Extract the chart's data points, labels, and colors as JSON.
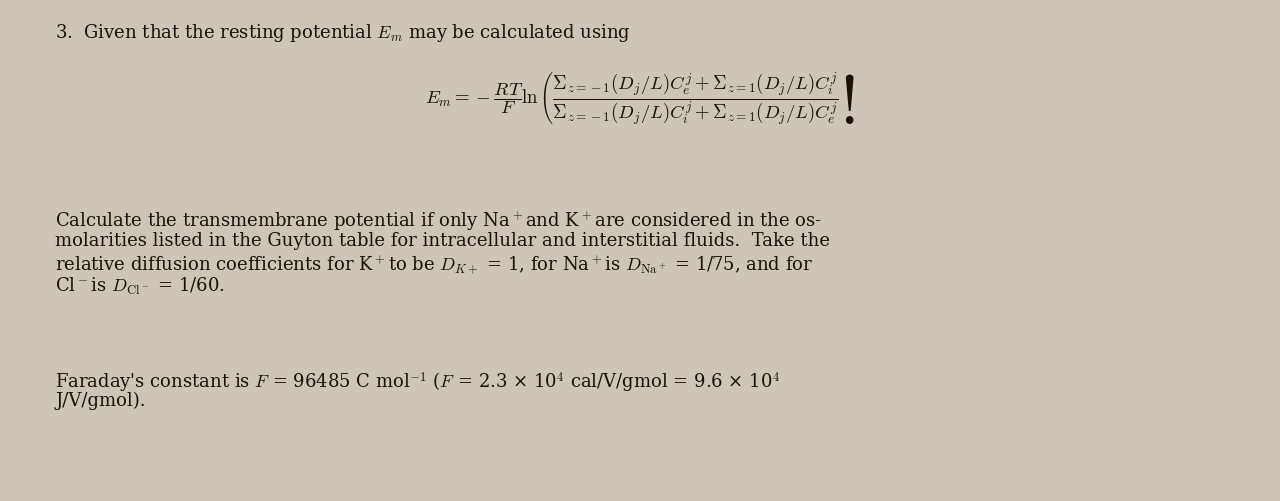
{
  "background_color": "#ccc5b8",
  "text_color": "#1a1208",
  "fig_width": 12.8,
  "fig_height": 5.02,
  "line1": "3.  Given that the resting potential $E_m$ may be calculated using",
  "equation": "$E_m = -\\dfrac{RT}{F}\\ln\\left(\\dfrac{\\Sigma_{z=-1}(D_j/L)C_e^j + \\Sigma_{z=1}(D_j/L)C_i^j}{\\Sigma_{z=-1}(D_j/L)C_i^j + \\Sigma_{z=1}(D_j/L)C_e^j}\\right)$",
  "para1_line1": "Calculate the transmembrane potential if only Na$^+$and K$^+$are considered in the os-",
  "para1_line2": "molarities listed in the Guyton table for intracellular and interstitial fluids.  Take the",
  "para1_line3": "relative diffusion coefficients for K$^+$to be $D_{K+}$ = 1, for Na$^+$is $D_{\\mathrm{Na}^+}$ = 1/75, and for",
  "para1_line4": "Cl$^-$is $D_{\\mathrm{Cl}^-}$ = 1/60.",
  "para2_line1": "Faraday's constant is $F$ = 96485 C mol$^{-1}$ ($F$ = 2.3 × 10$^4$ cal/V/gmol = 9.6 × 10$^4$",
  "para2_line2": "J/V/gmol).",
  "font_size_main": 13.0,
  "font_size_eq": 13.5,
  "font_family": "DejaVu Serif"
}
